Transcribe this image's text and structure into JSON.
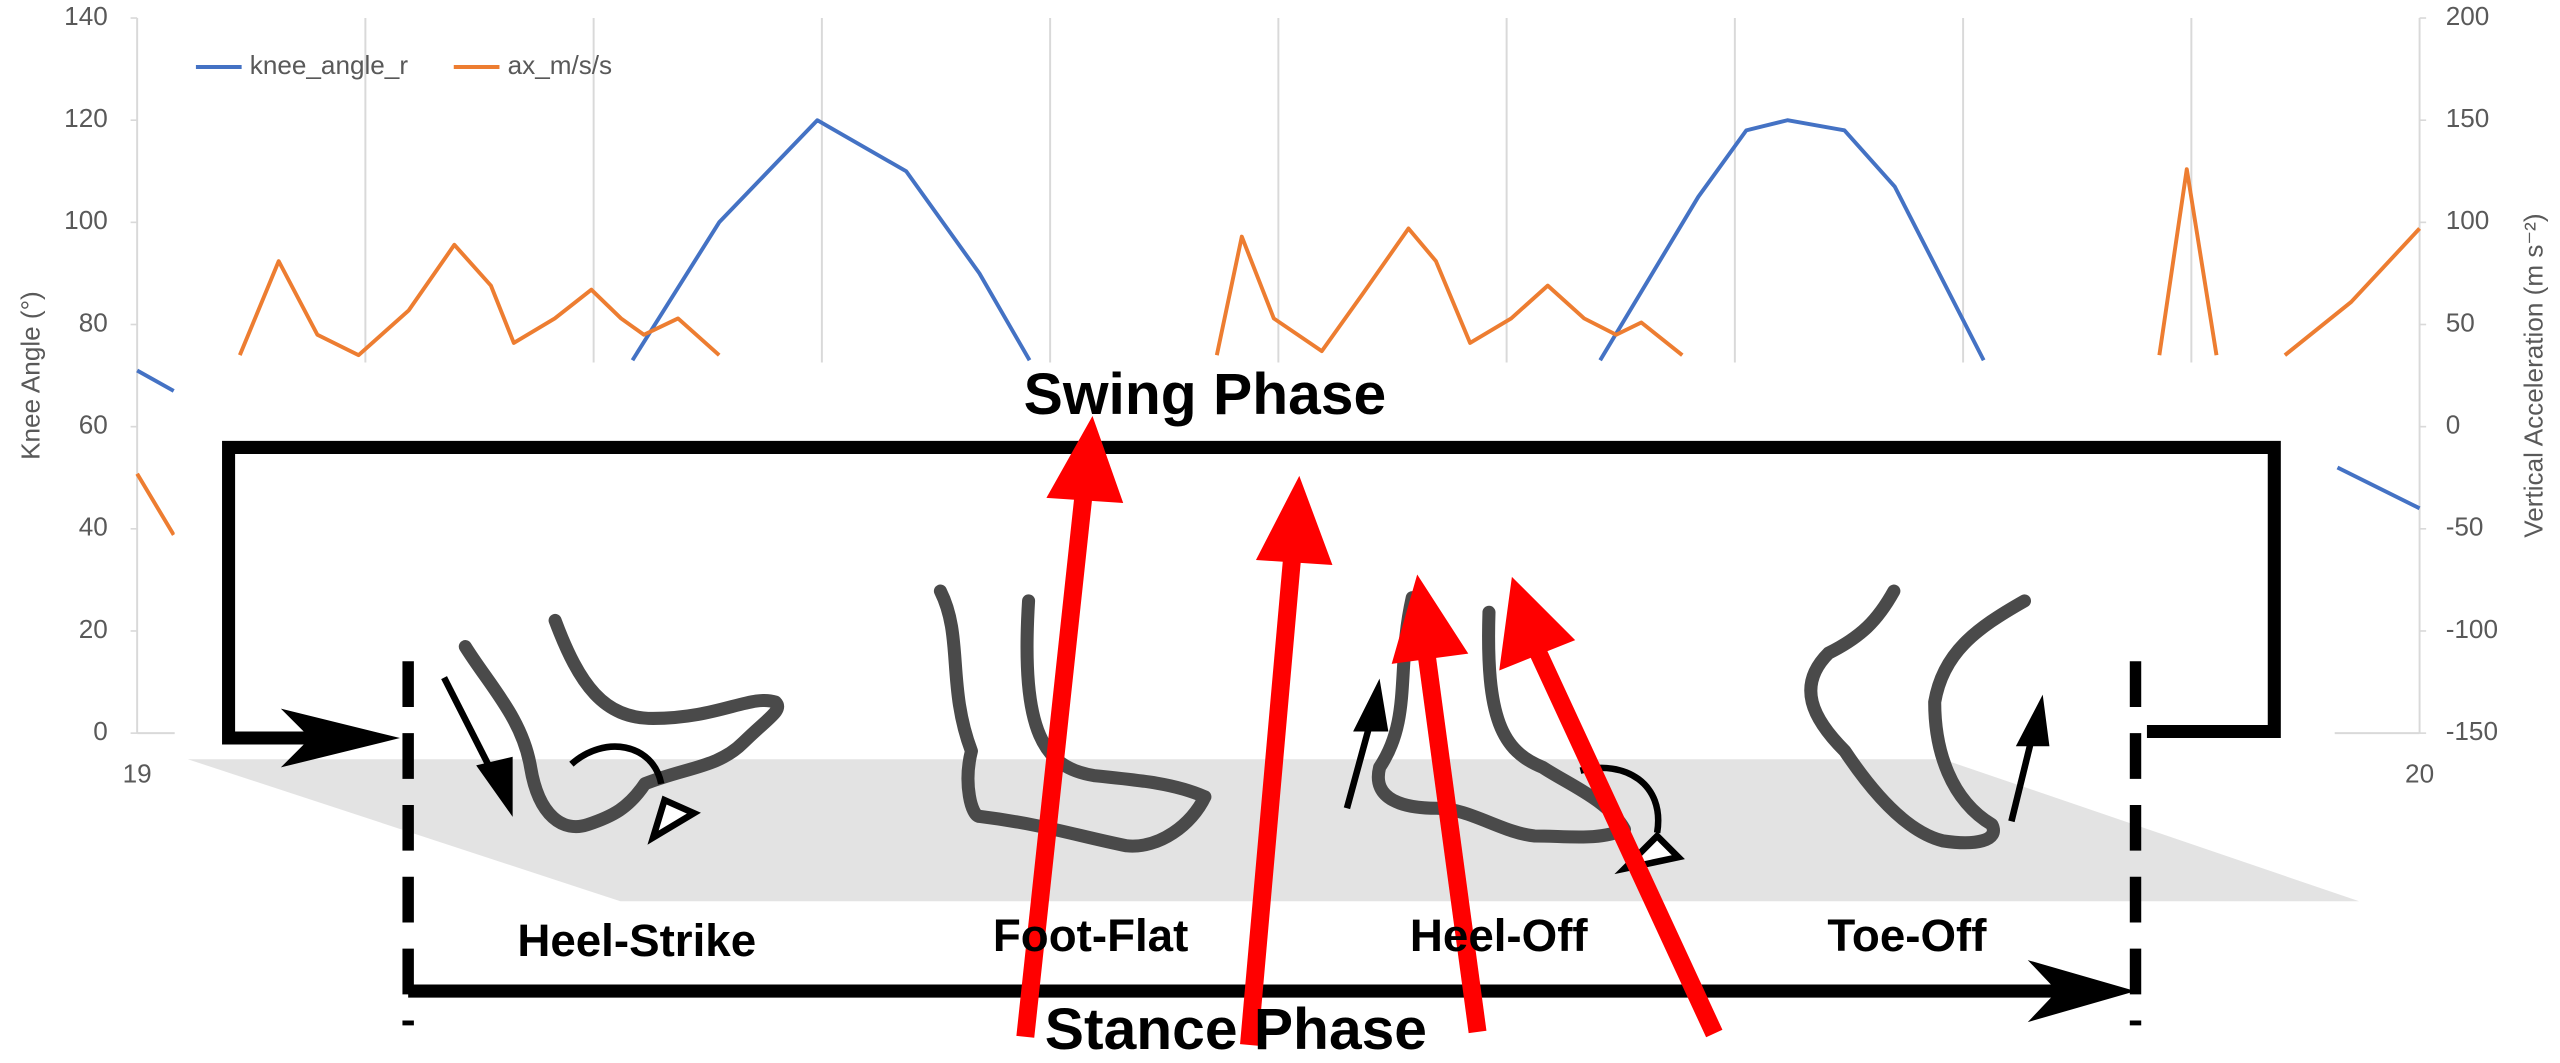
{
  "chart_data": {
    "type": "line",
    "xlim": [
      19,
      20
    ],
    "xticks": [
      19,
      20
    ],
    "xgrid": [
      19.1,
      19.2,
      19.3,
      19.4,
      19.5,
      19.6,
      19.7,
      19.8,
      19.9
    ],
    "ylim": [
      0,
      140
    ],
    "yticks": [
      0,
      20,
      40,
      60,
      80,
      100,
      120,
      140
    ],
    "y2lim": [
      -150,
      200
    ],
    "y2ticks": [
      -150,
      -100,
      -50,
      0,
      50,
      100,
      150,
      200
    ],
    "ylabel": "Knee Angle (°)",
    "y2label": "Vertical Acceleration (m s⁻²)",
    "grid": "vertical",
    "legend": "top-left",
    "series": [
      {
        "name": "knee_angle_r",
        "color": "#4472c4",
        "x": [
          19.0,
          19.016,
          19.1,
          19.217,
          19.255,
          19.298,
          19.337,
          19.369,
          19.391,
          19.5,
          19.641,
          19.684,
          19.705,
          19.723,
          19.748,
          19.77,
          19.809,
          19.9,
          19.964,
          20.0
        ],
        "values": [
          71,
          67,
          null,
          73,
          100,
          120,
          110,
          90,
          73,
          null,
          73,
          105,
          118,
          120,
          118,
          107,
          73,
          null,
          52,
          44
        ]
      },
      {
        "name": "ax_m/s/s",
        "color": "#ed7d31",
        "axis": "y2",
        "x": [
          19.0,
          19.016,
          19.03,
          19.045,
          19.062,
          19.079,
          19.097,
          19.119,
          19.139,
          19.155,
          19.165,
          19.183,
          19.199,
          19.212,
          19.222,
          19.237,
          19.255,
          19.4,
          19.473,
          19.484,
          19.498,
          19.519,
          19.537,
          19.557,
          19.569,
          19.584,
          19.602,
          19.618,
          19.634,
          19.648,
          19.659,
          19.677,
          19.8,
          19.886,
          19.898,
          19.911,
          19.93,
          19.941,
          19.97,
          20.0
        ],
        "values": [
          -23,
          -53,
          null,
          35,
          81,
          45,
          35,
          57,
          89,
          69,
          41,
          53,
          67,
          53,
          45,
          53,
          35,
          null,
          35,
          93,
          53,
          37,
          65,
          97,
          81,
          41,
          53,
          69,
          53,
          45,
          51,
          35,
          null,
          35,
          126,
          35,
          null,
          35,
          61,
          97
        ]
      }
    ]
  },
  "diagram": {
    "swing": "Swing Phase",
    "stance": "Stance Phase",
    "phases": [
      "Heel-Strike",
      "Foot-Flat",
      "Heel-Off",
      "Toe-Off"
    ]
  }
}
